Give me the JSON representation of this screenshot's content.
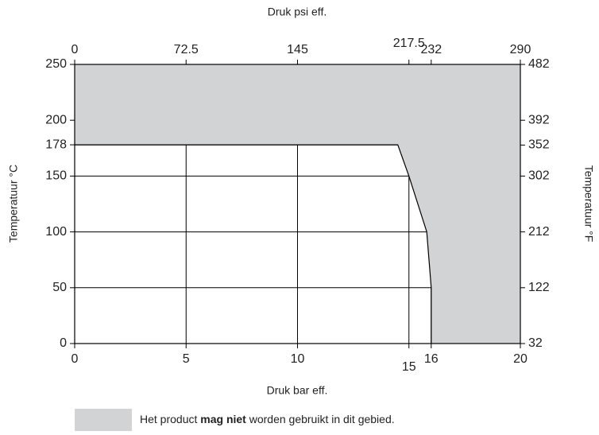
{
  "chart_data": {
    "type": "line",
    "xlabel": "Druk bar eff.",
    "x2label": "Druk psi eff.",
    "ylabel": "Temperatuur °C",
    "y2label": "Temperatuur °F",
    "xlim": [
      0,
      20
    ],
    "xticks": [
      0,
      5,
      10,
      15,
      16,
      20
    ],
    "x2lim": [
      0,
      290
    ],
    "x2ticks": [
      0,
      72.5,
      145,
      217.5,
      232,
      290
    ],
    "ylim": [
      0,
      250
    ],
    "yticks": [
      0,
      50,
      100,
      150,
      178,
      200,
      250
    ],
    "y2lim": [
      32,
      482
    ],
    "y2ticks": [
      32,
      122,
      212,
      302,
      352,
      392,
      482
    ],
    "grid": true,
    "series": [
      {
        "color": "#000000",
        "x": [
          0,
          14.5,
          15,
          15.8,
          16,
          16
        ],
        "values": [
          178,
          178,
          150,
          100,
          50,
          0
        ]
      }
    ],
    "region_color": "#d1d3d4",
    "legend": {
      "text_before": "Het product ",
      "text_bold": "mag niet",
      "text_after": " worden gebruikt in dit gebied."
    }
  }
}
